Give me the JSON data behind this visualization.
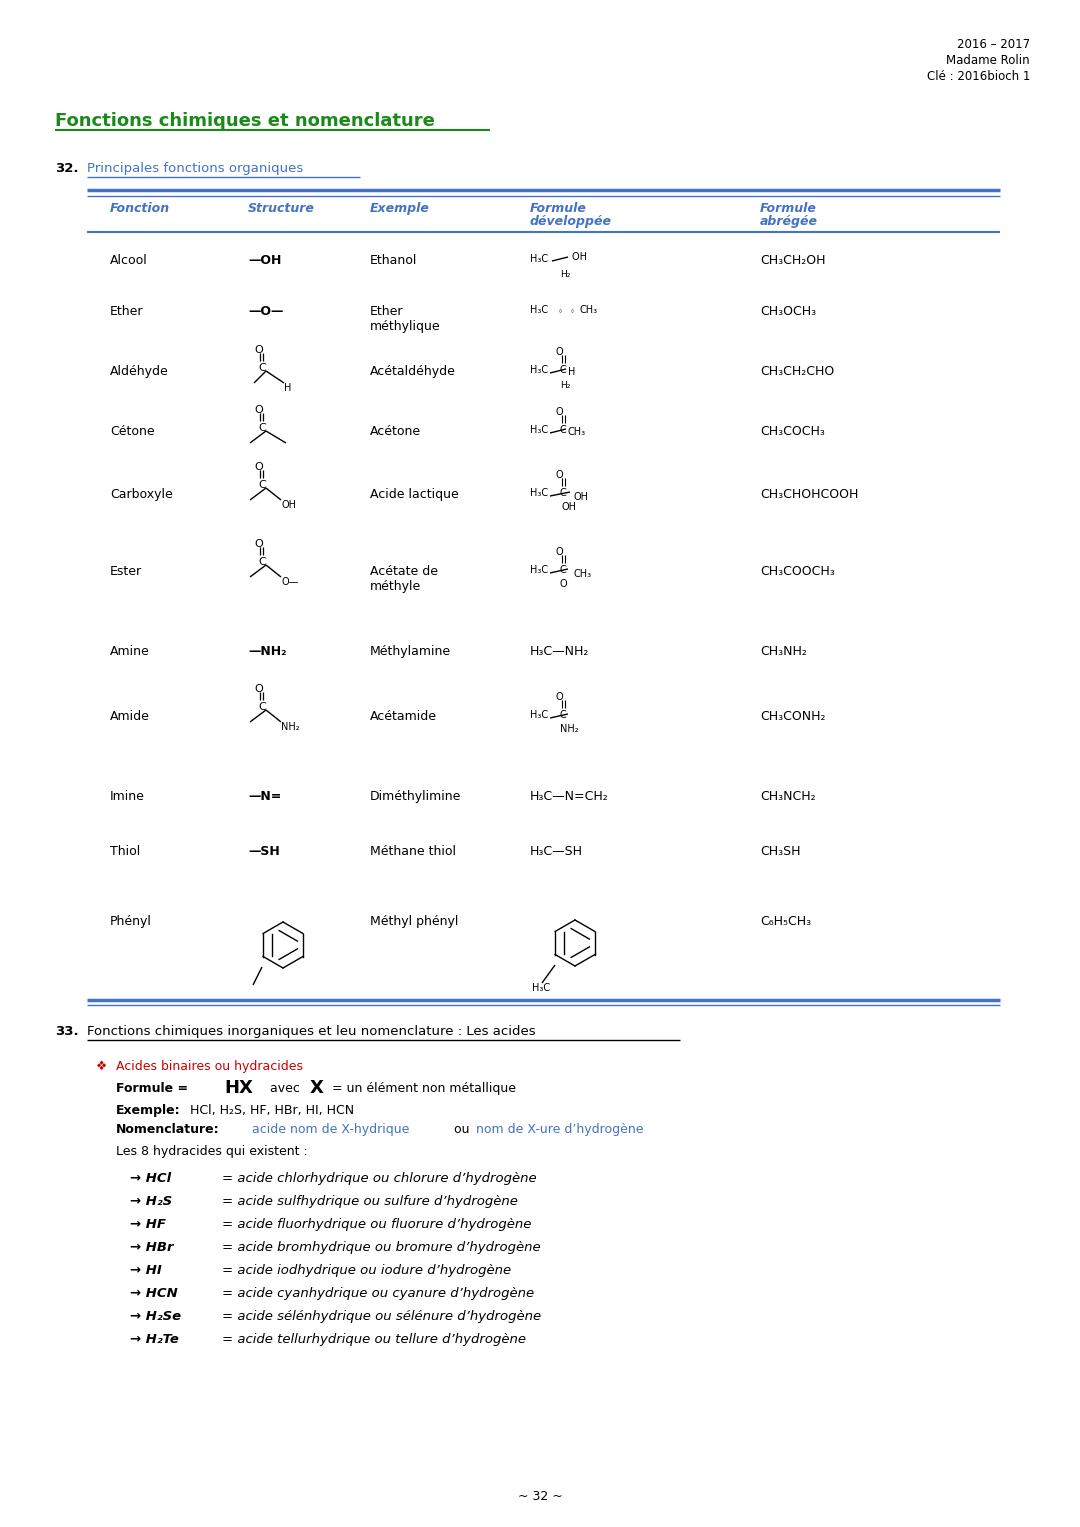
{
  "bg_color": "#ffffff",
  "header_right": [
    "2016 – 2017",
    "Madame Rolin",
    "Clé : 2016bioch 1"
  ],
  "section_title": "Fonctions chimiques et nomenclature",
  "section_color": "#1a8a1a",
  "table_header_color": "#4472c4",
  "underline_color": "#4472c4",
  "bullet_color": "#cc0000",
  "blue_text_color": "#4472c4",
  "body_color": "#000000",
  "page_number": "~ 32 ~"
}
